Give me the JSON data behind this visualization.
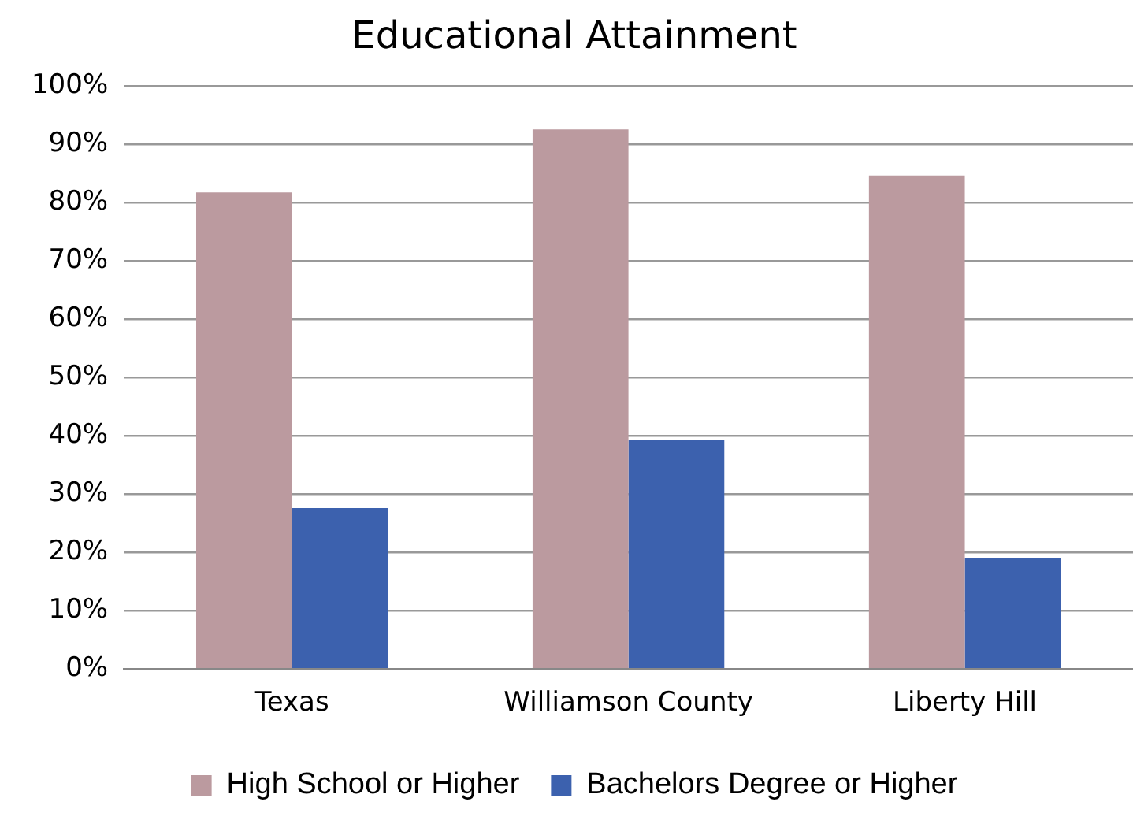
{
  "chart_data": {
    "type": "bar",
    "title": "Educational Attainment",
    "categories": [
      "Texas",
      "Williamson County",
      "Liberty Hill"
    ],
    "series": [
      {
        "name": "High School or Higher",
        "color": "#bb9a9f",
        "values": [
          81.8,
          92.6,
          84.7
        ]
      },
      {
        "name": "Bachelors Degree or Higher",
        "color": "#3c61ae",
        "values": [
          27.6,
          39.3,
          19.1
        ]
      }
    ],
    "ylim": [
      0,
      100
    ],
    "yticks": [
      {
        "value": 0,
        "label": "0%"
      },
      {
        "value": 10,
        "label": "10%"
      },
      {
        "value": 20,
        "label": "20%"
      },
      {
        "value": 30,
        "label": "30%"
      },
      {
        "value": 40,
        "label": "40%"
      },
      {
        "value": 50,
        "label": "50%"
      },
      {
        "value": 60,
        "label": "60%"
      },
      {
        "value": 70,
        "label": "70%"
      },
      {
        "value": 80,
        "label": "80%"
      },
      {
        "value": 90,
        "label": "90%"
      },
      {
        "value": 100,
        "label": "100%"
      }
    ],
    "grid": "y",
    "legend": "bottom"
  }
}
